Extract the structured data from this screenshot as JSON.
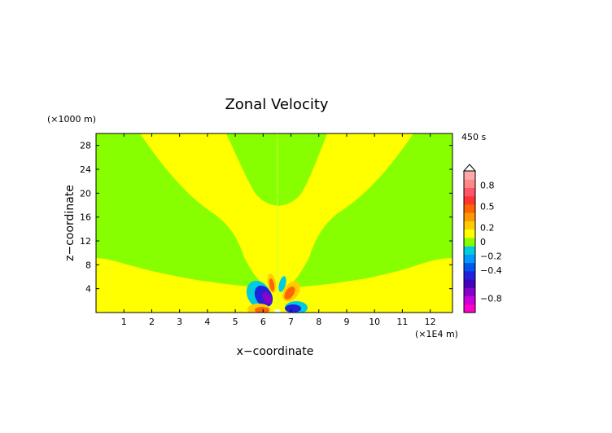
{
  "chart_data": {
    "type": "heatmap",
    "title": "Zonal Velocity",
    "xlabel": "x−coordinate",
    "ylabel": "z−coordinate",
    "x_units": "(×1E4 m)",
    "y_units": "(×1000 m)",
    "time_label": "450 s",
    "xlim": [
      0,
      12.8
    ],
    "ylim": [
      0,
      30
    ],
    "x_ticks": [
      "1",
      "2",
      "3",
      "4",
      "5",
      "6",
      "7",
      "8",
      "9",
      "10",
      "11",
      "12"
    ],
    "y_ticks": [
      "4",
      "8",
      "12",
      "16",
      "20",
      "24",
      "28"
    ],
    "colorbar": {
      "labels": [
        "0.8",
        "0.5",
        "0.2",
        "0",
        "−0.2",
        "−0.4",
        "−0.8"
      ],
      "label_values": [
        0.8,
        0.5,
        0.2,
        0,
        -0.2,
        -0.4,
        -0.8
      ],
      "colors": [
        "#ff00cc",
        "#cc00dd",
        "#8800cc",
        "#4400bb",
        "#2222dd",
        "#0055ee",
        "#0099ff",
        "#00ccdd",
        "#88ff00",
        "#ffff00",
        "#ffcc00",
        "#ff9900",
        "#ff6600",
        "#ff3333",
        "#ff5566",
        "#ff8888",
        "#ffaaaa"
      ]
    },
    "field_colors": {
      "background": "#ffff00",
      "near_zero": "#88ff00"
    },
    "regions": [
      {
        "name": "background",
        "color": "#ffff00"
      },
      {
        "name": "near-zero-left",
        "color": "#88ff00"
      },
      {
        "name": "near-zero-right",
        "color": "#88ff00"
      },
      {
        "name": "near-zero-central-plume",
        "color": "#88ff00"
      }
    ],
    "source_x": 6.4
  }
}
